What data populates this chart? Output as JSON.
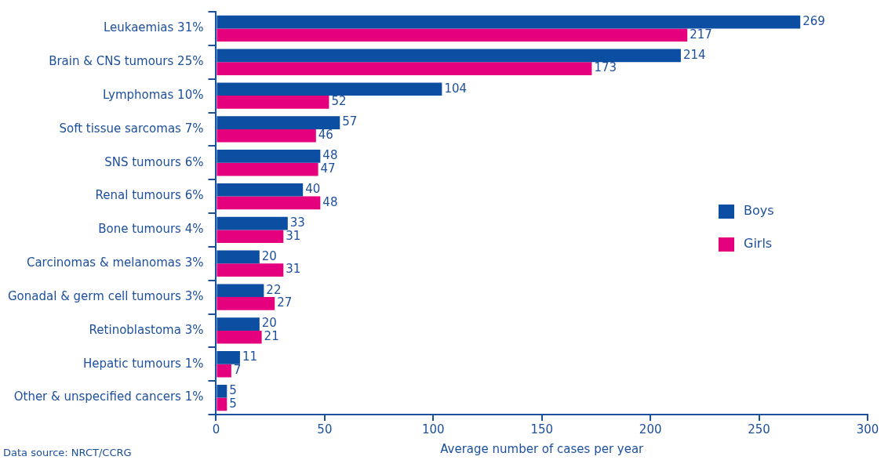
{
  "chart_data": {
    "type": "bar",
    "orientation": "horizontal",
    "xlabel": "Average number of cases per year",
    "categories": [
      "Leukaemias 31%",
      "Brain & CNS tumours 25%",
      "Lymphomas 10%",
      "Soft tissue sarcomas 7%",
      "SNS tumours 6%",
      "Renal tumours 6%",
      "Bone tumours 4%",
      "Carcinomas & melanomas 3%",
      "Gonadal & germ cell tumours 3%",
      "Retinoblastoma 3%",
      "Hepatic tumours 1%",
      "Other & unspecified cancers 1%"
    ],
    "series": [
      {
        "name": "Boys",
        "color": "#0b4ea2",
        "values": [
          269,
          214,
          104,
          57,
          48,
          40,
          33,
          20,
          22,
          20,
          11,
          5
        ]
      },
      {
        "name": "Girls",
        "color": "#e5007e",
        "values": [
          217,
          173,
          52,
          46,
          47,
          48,
          31,
          31,
          27,
          21,
          7,
          5
        ]
      }
    ],
    "xlim": [
      0,
      300
    ],
    "xticks": [
      0,
      50,
      100,
      150,
      200,
      250,
      300
    ],
    "grid": false,
    "legend": "right",
    "data_labels": true,
    "annotations": [
      "Data source: NRCT/CCRG"
    ]
  }
}
